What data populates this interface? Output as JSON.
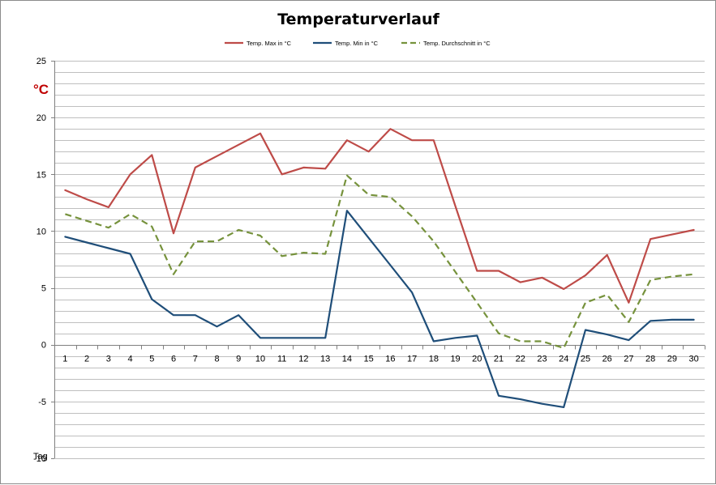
{
  "chart_data": {
    "type": "line",
    "title": "Temperaturverlauf",
    "ylabel": "°C",
    "xlabel": "Tag",
    "ylim": [
      -10,
      25
    ],
    "ytick_step": 5,
    "grid_step": 1,
    "legend_position": "top",
    "categories": [
      "1",
      "2",
      "3",
      "4",
      "5",
      "6",
      "7",
      "8",
      "9",
      "10",
      "11",
      "12",
      "13",
      "14",
      "15",
      "16",
      "17",
      "18",
      "19",
      "20",
      "21",
      "22",
      "23",
      "24",
      "25",
      "26",
      "27",
      "28",
      "29",
      "30"
    ],
    "series": [
      {
        "name": "Temp. Max in °C",
        "color": "#be4b48",
        "dash": "solid",
        "values": [
          13.6,
          12.8,
          12.1,
          15.0,
          16.7,
          9.8,
          15.6,
          16.6,
          17.6,
          18.6,
          15.0,
          15.6,
          15.5,
          18.0,
          17.0,
          19.0,
          18.0,
          18.0,
          12.2,
          6.5,
          6.5,
          5.5,
          5.9,
          4.9,
          6.1,
          7.9,
          3.7,
          9.3,
          9.7,
          10.1
        ]
      },
      {
        "name": "Temp. Min in °C",
        "color": "#1f4e79",
        "dash": "solid",
        "values": [
          9.5,
          9.0,
          8.5,
          8.0,
          4.0,
          2.6,
          2.6,
          1.6,
          2.6,
          0.6,
          0.6,
          0.6,
          0.6,
          11.8,
          9.4,
          7.0,
          4.6,
          0.3,
          0.6,
          0.8,
          -4.5,
          -4.8,
          -5.2,
          -5.5,
          1.3,
          0.9,
          0.4,
          2.1,
          2.2,
          2.2
        ]
      },
      {
        "name": "Temp. Durchschnitt in °C",
        "color": "#76923c",
        "dash": "dashed",
        "values": [
          11.5,
          10.9,
          10.3,
          11.5,
          10.4,
          6.2,
          9.1,
          9.1,
          10.1,
          9.6,
          7.8,
          8.1,
          8.0,
          14.9,
          13.2,
          13.0,
          11.3,
          9.1,
          6.4,
          3.7,
          1.0,
          0.3,
          0.3,
          -0.3,
          3.7,
          4.4,
          2.0,
          5.7,
          6.0,
          6.2
        ]
      }
    ]
  }
}
